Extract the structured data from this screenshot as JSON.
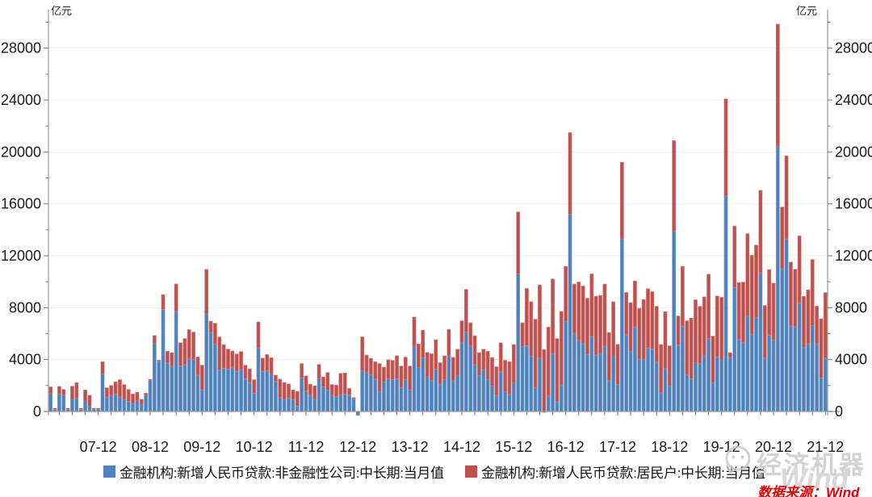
{
  "unit_label": "亿元",
  "source_note": "数据来源：Wind",
  "watermark": {
    "brand": "经济机器",
    "wind": "Wind"
  },
  "colors": {
    "bar_blue": "#4f81bd",
    "bar_blue_edge": "#7fa5d3",
    "bar_red": "#c0504d",
    "bar_red_edge": "#d3807d",
    "axis": "#999999",
    "tick": "#777777",
    "grid": "#f0f0f0",
    "label": "#1a1a1a",
    "watermark_gray": "#c9c9c9",
    "source_red": "#e60000"
  },
  "legend": [
    {
      "label": "金融机构:新增人民币贷款:非金融性公司:中长期:当月值",
      "color": "#4f81bd"
    },
    {
      "label": "金融机构:新增人民币贷款:居民户:中长期:当月值",
      "color": "#c0504d"
    }
  ],
  "chart_data": {
    "type": "bar",
    "stacked": true,
    "unit": "亿元",
    "start_month": "2007-01",
    "end_month": "2021-12",
    "months_count": 180,
    "ylim": [
      -500,
      31000
    ],
    "y_ticks": [
      0,
      4000,
      8000,
      12000,
      16000,
      20000,
      24000,
      28000
    ],
    "y_minor_step": 2000,
    "grid": "horizontal-faint",
    "legend_position": "bottom",
    "x_tick_labels": [
      "07-12",
      "08-12",
      "09-12",
      "10-12",
      "11-12",
      "12-12",
      "13-12",
      "14-12",
      "15-12",
      "16-12",
      "17-12",
      "18-12",
      "19-12",
      "20-12",
      "21-12"
    ],
    "series": [
      {
        "name": "金融机构:新增人民币贷款:非金融性公司:中长期:当月值",
        "color": "#4f81bd",
        "values": [
          1400,
          150,
          1350,
          1250,
          150,
          930,
          1040,
          150,
          790,
          415,
          150,
          150,
          2900,
          1080,
          1240,
          1350,
          1080,
          930,
          790,
          620,
          830,
          520,
          1240,
          2380,
          5230,
          3850,
          7870,
          3740,
          3490,
          7710,
          3510,
          3600,
          4050,
          4020,
          2810,
          1670,
          7520,
          6080,
          5190,
          3190,
          3340,
          3270,
          3370,
          3090,
          3230,
          2530,
          2240,
          1410,
          4900,
          3070,
          3150,
          2860,
          2320,
          1080,
          930,
          1040,
          930,
          415,
          2590,
          1560,
          1240,
          930,
          2530,
          1910,
          1660,
          1240,
          1140,
          1290,
          1350,
          1290,
          975,
          -300,
          3150,
          3000,
          2840,
          2490,
          1550,
          2280,
          2530,
          2450,
          2520,
          1840,
          2450,
          1670,
          5040,
          3380,
          4150,
          2670,
          2400,
          3260,
          2060,
          2450,
          4290,
          2370,
          2760,
          5290,
          6120,
          5040,
          3600,
          2780,
          3240,
          2460,
          1960,
          1220,
          3060,
          1520,
          1320,
          2220,
          10600,
          5020,
          5080,
          4280,
          1830,
          4110,
          -80,
          1210,
          4470,
          730,
          2020,
          6950,
          15200,
          6020,
          5480,
          5230,
          4400,
          5780,
          4330,
          4470,
          5030,
          2370,
          4280,
          2060,
          13300,
          5950,
          4620,
          6510,
          4030,
          4000,
          4880,
          4810,
          3800,
          1430,
          3300,
          1980,
          13900,
          5130,
          6570,
          2820,
          2520,
          3750,
          3680,
          4290,
          5640,
          2220,
          4210,
          3980,
          16600,
          4160,
          9560,
          5550,
          5310,
          7350,
          5970,
          7250,
          10680,
          4110,
          5890,
          5500,
          20400,
          11000,
          13300,
          6600,
          6530,
          8370,
          4940,
          5220,
          6630,
          5220,
          2590,
          4100
        ]
      },
      {
        "name": "金融机构:新增人民币贷款:居民户:中长期:当月值",
        "color": "#c0504d",
        "values": [
          500,
          100,
          580,
          450,
          100,
          1020,
          1180,
          100,
          870,
          830,
          100,
          100,
          935,
          750,
          770,
          930,
          1370,
          1140,
          910,
          730,
          660,
          420,
          170,
          100,
          620,
          100,
          1130,
          900,
          1040,
          2120,
          1790,
          2020,
          2260,
          2100,
          1390,
          1900,
          3430,
          880,
          1610,
          2550,
          1810,
          1540,
          1290,
          1340,
          1390,
          1040,
          1040,
          1040,
          2000,
          1040,
          1240,
          1290,
          480,
          1410,
          1290,
          1080,
          730,
          1140,
          1100,
          1180,
          870,
          1040,
          1100,
          750,
          1350,
          830,
          890,
          1650,
          1620,
          480,
          100,
          0,
          2600,
          1350,
          1260,
          1350,
          2140,
          1140,
          1450,
          1490,
          1780,
          1660,
          1740,
          1830,
          2240,
          1820,
          2110,
          1890,
          2050,
          2270,
          1700,
          1840,
          2040,
          1800,
          2040,
          1700,
          3290,
          1800,
          2240,
          1750,
          1560,
          2180,
          2200,
          2230,
          2230,
          2430,
          2520,
          2940,
          4780,
          1820,
          4400,
          4180,
          5280,
          5640,
          4770,
          5290,
          5740,
          4890,
          5690,
          4220,
          6290,
          3800,
          4500,
          4440,
          4330,
          4830,
          4540,
          4470,
          4790,
          3710,
          4180,
          3110,
          5910,
          3220,
          3770,
          3540,
          3920,
          4630,
          4580,
          4420,
          4310,
          3730,
          4390,
          3080,
          6970,
          2230,
          4610,
          4170,
          4680,
          4860,
          4420,
          4540,
          4940,
          3590,
          4690,
          4820,
          7490,
          370,
          4740,
          4390,
          4660,
          6350,
          6070,
          5570,
          6360,
          4060,
          5050,
          4390,
          9450,
          4760,
          6400,
          4920,
          4430,
          5160,
          3930,
          4150,
          5080,
          2900,
          4560,
          5060
        ]
      }
    ]
  }
}
